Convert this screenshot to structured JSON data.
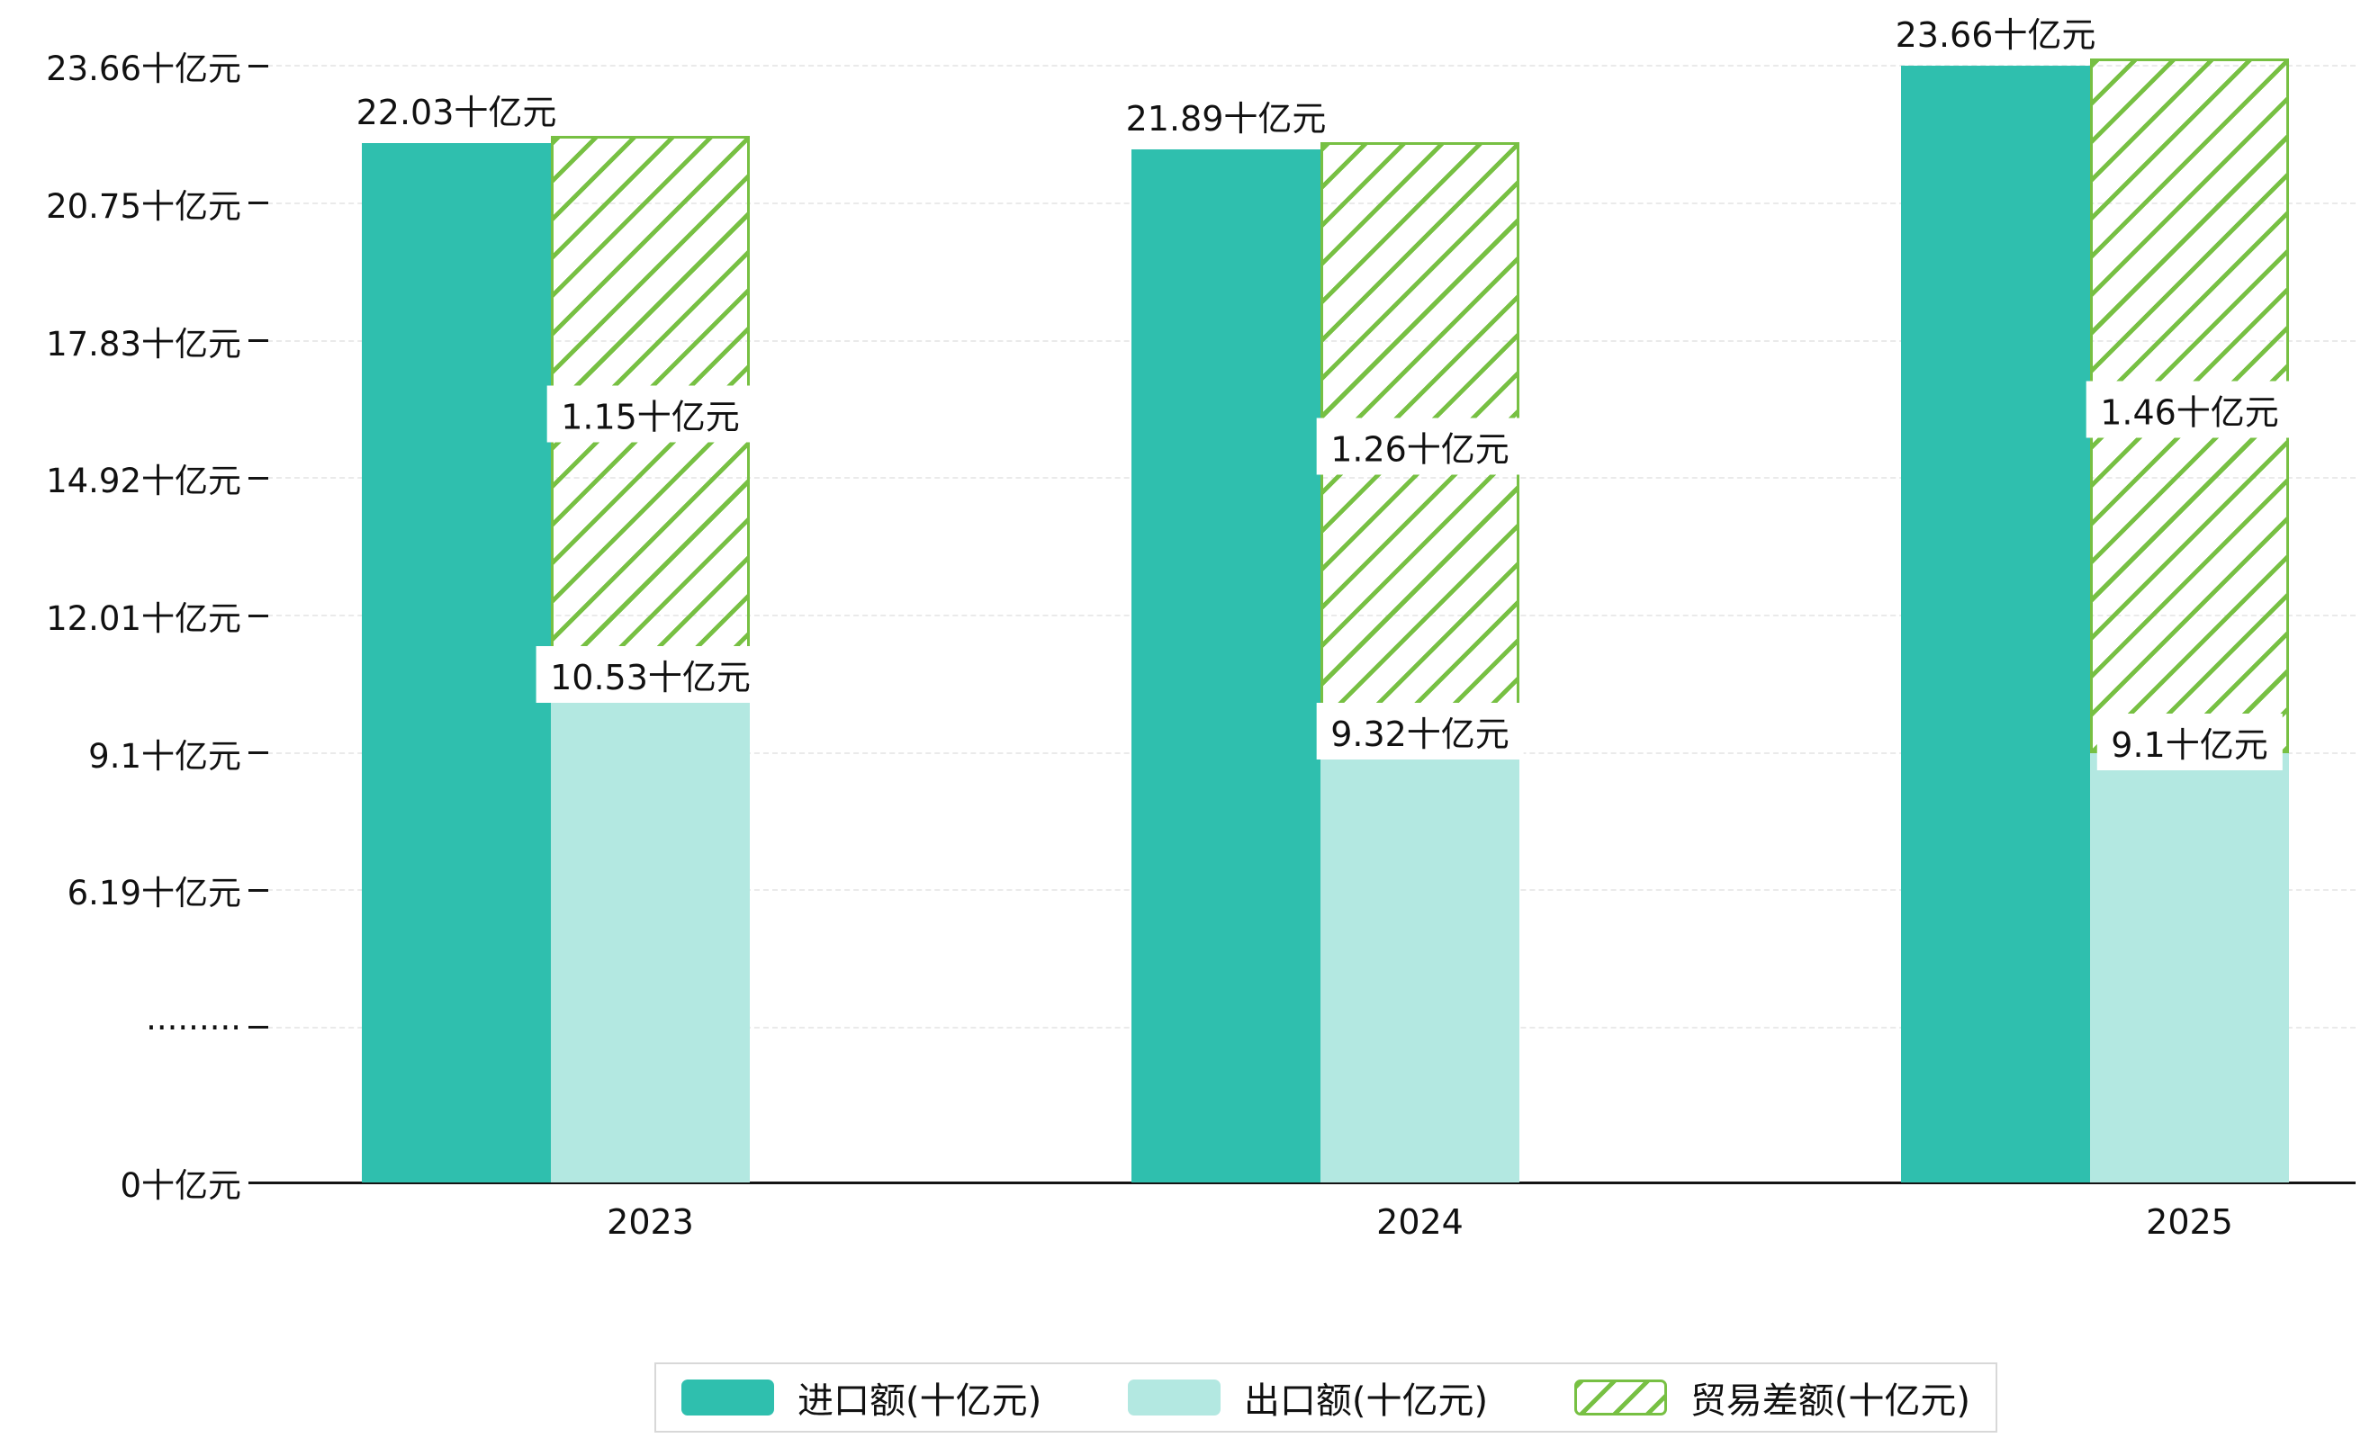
{
  "chart_data": {
    "type": "bar",
    "title": "",
    "unit": "十亿元",
    "categories": [
      "2023",
      "2024",
      "2025"
    ],
    "series": [
      {
        "name": "进口额(十亿元)",
        "key": "import",
        "color": "#2fbfae",
        "pattern": "solid",
        "values": [
          22.03,
          21.89,
          23.66
        ],
        "labels": [
          "22.03十亿元",
          "21.89十亿元",
          "23.66十亿元"
        ]
      },
      {
        "name": "出口额(十亿元)",
        "key": "export",
        "color": "#b3e8e1",
        "pattern": "solid",
        "values": [
          10.53,
          9.32,
          9.1
        ],
        "labels": [
          "10.53十亿元",
          "9.32十亿元",
          "9.1十亿元"
        ]
      },
      {
        "name": "贸易差额(十亿元)",
        "key": "trade-balance",
        "color": "#77c043",
        "pattern": "diagonal-hatch",
        "values": [
          1.15,
          1.26,
          1.46
        ],
        "labels": [
          "1.15十亿元",
          "1.26十亿元",
          "1.46十亿元"
        ],
        "render_hint": "hatched floating bar drawn from export bar top up to import bar top, stacked above export bar"
      }
    ],
    "yticks": [
      {
        "value": 0,
        "label": "0十亿元"
      },
      {
        "value": 3.28,
        "label": "·········"
      },
      {
        "value": 6.19,
        "label": "6.19十亿元"
      },
      {
        "value": 9.1,
        "label": "9.1十亿元"
      },
      {
        "value": 12.01,
        "label": "12.01十亿元"
      },
      {
        "value": 14.92,
        "label": "14.92十亿元"
      },
      {
        "value": 17.83,
        "label": "17.83十亿元"
      },
      {
        "value": 20.75,
        "label": "20.75十亿元"
      },
      {
        "value": 23.66,
        "label": "23.66十亿元"
      }
    ],
    "ylim": [
      0,
      23.66
    ],
    "grid": "dashed-horizontal",
    "legend_position": "bottom-center",
    "colors": {
      "import": "#2fbfae",
      "export": "#b3e8e1",
      "trade_balance": "#77c043",
      "axis": "#141414",
      "grid": "#eaeaea",
      "background": "#ffffff"
    }
  }
}
